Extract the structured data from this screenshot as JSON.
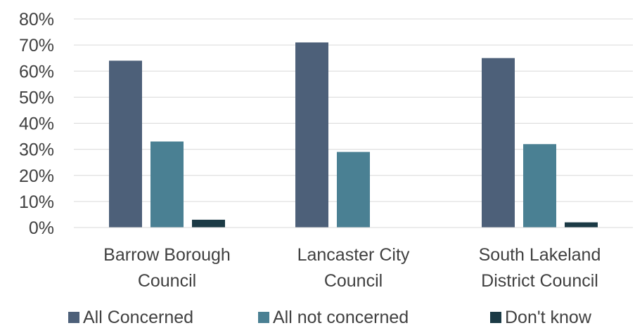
{
  "chart_data": {
    "type": "bar",
    "categories": [
      [
        "Barrow Borough",
        "Council"
      ],
      [
        "Lancaster City",
        "Council"
      ],
      [
        "South Lakeland",
        "District Council"
      ]
    ],
    "series": [
      {
        "name": "All Concerned",
        "color": "#4d6079",
        "values": [
          0.64,
          0.71,
          0.65
        ]
      },
      {
        "name": "All not concerned",
        "color": "#4a8093",
        "values": [
          0.33,
          0.29,
          0.32
        ]
      },
      {
        "name": "Don't know",
        "color": "#1b3a45",
        "values": [
          0.03,
          0.0,
          0.02
        ]
      }
    ],
    "yticks": [
      "0%",
      "10%",
      "20%",
      "30%",
      "40%",
      "50%",
      "60%",
      "70%",
      "80%"
    ],
    "ylim": [
      0,
      0.8
    ],
    "grid": true,
    "legend_position": "bottom",
    "gridline_color": "#d9d9d9",
    "text_color": "#404040"
  }
}
